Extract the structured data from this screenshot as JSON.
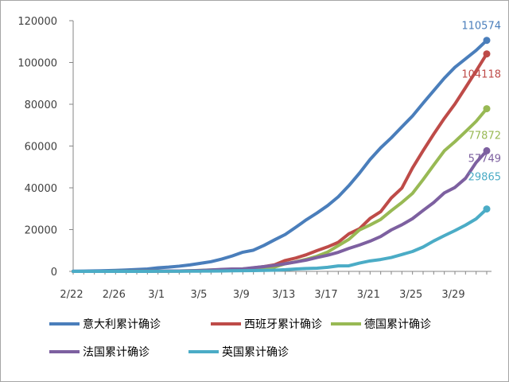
{
  "chart_data": {
    "type": "line",
    "title": "",
    "xlabel": "",
    "ylabel": "",
    "ylim": [
      0,
      120000
    ],
    "yticks": [
      "0",
      "20000",
      "40000",
      "60000",
      "80000",
      "100000",
      "120000"
    ],
    "yticks_values": [
      0,
      20000,
      40000,
      60000,
      80000,
      100000,
      120000
    ],
    "x_tick_labels": [
      "2/22",
      "2/26",
      "3/1",
      "3/5",
      "3/9",
      "3/13",
      "3/17",
      "3/21",
      "3/25",
      "3/29"
    ],
    "x_tick_index": [
      0,
      4,
      8,
      12,
      16,
      20,
      24,
      28,
      32,
      36
    ],
    "x": [
      "2/22",
      "2/23",
      "2/24",
      "2/25",
      "2/26",
      "2/27",
      "2/28",
      "2/29",
      "3/1",
      "3/2",
      "3/3",
      "3/4",
      "3/5",
      "3/6",
      "3/7",
      "3/8",
      "3/9",
      "3/10",
      "3/11",
      "3/12",
      "3/13",
      "3/14",
      "3/15",
      "3/16",
      "3/17",
      "3/18",
      "3/19",
      "3/20",
      "3/21",
      "3/22",
      "3/23",
      "3/24",
      "3/25",
      "3/26",
      "3/27",
      "3/28",
      "3/29",
      "3/30",
      "3/31",
      "4/1"
    ],
    "legend_position": "bottom",
    "grid": false,
    "series": [
      {
        "name": "意大利累计确诊",
        "color": "#4a7ebb",
        "end_label": "110574",
        "values": [
          79,
          157,
          229,
          323,
          470,
          655,
          888,
          1128,
          1694,
          2036,
          2502,
          3089,
          3858,
          4636,
          5883,
          7375,
          9172,
          10149,
          12462,
          15113,
          17660,
          21157,
          24747,
          27980,
          31506,
          35713,
          41035,
          47021,
          53578,
          59138,
          63927,
          69176,
          74386,
          80539,
          86498,
          92472,
          97689,
          101739,
          105792,
          110574
        ]
      },
      {
        "name": "西班牙累计确诊",
        "color": "#be4b48",
        "end_label": "104118",
        "values": [
          2,
          2,
          2,
          6,
          13,
          15,
          32,
          45,
          84,
          120,
          165,
          222,
          259,
          400,
          500,
          673,
          1073,
          1695,
          2277,
          3146,
          5232,
          6391,
          7988,
          9942,
          11748,
          13910,
          17963,
          20410,
          25374,
          28603,
          35136,
          39885,
          49515,
          57786,
          65719,
          73235,
          80110,
          87956,
          95923,
          104118
        ]
      },
      {
        "name": "德国累计确诊",
        "color": "#98b954",
        "end_label": "77872",
        "values": [
          16,
          16,
          16,
          18,
          27,
          46,
          48,
          79,
          130,
          159,
          196,
          262,
          482,
          670,
          799,
          1040,
          1176,
          1457,
          1908,
          2078,
          3675,
          4585,
          5795,
          7272,
          9257,
          12327,
          15320,
          19848,
          22213,
          24873,
          29056,
          32986,
          37323,
          43938,
          50871,
          57695,
          62095,
          66885,
          71808,
          77872
        ]
      },
      {
        "name": "法国累计确诊",
        "color": "#7d60a0",
        "end_label": "57749",
        "values": [
          12,
          12,
          12,
          14,
          18,
          38,
          57,
          100,
          130,
          191,
          212,
          285,
          423,
          653,
          949,
          1126,
          1209,
          1784,
          2281,
          2876,
          3661,
          4499,
          5423,
          6633,
          7730,
          9134,
          10995,
          12612,
          14459,
          16689,
          19856,
          22304,
          25233,
          29155,
          32964,
          37575,
          40174,
          44550,
          52128,
          57749
        ]
      },
      {
        "name": "英国累计确诊",
        "color": "#4bacc6",
        "end_label": "29865",
        "values": [
          9,
          13,
          13,
          13,
          13,
          15,
          20,
          23,
          36,
          40,
          51,
          85,
          115,
          163,
          206,
          273,
          321,
          382,
          456,
          590,
          798,
          1140,
          1391,
          1543,
          1950,
          2626,
          2689,
          3983,
          5018,
          5683,
          6650,
          8077,
          9529,
          11658,
          14543,
          17089,
          19522,
          22141,
          25150,
          29865
        ]
      }
    ]
  }
}
